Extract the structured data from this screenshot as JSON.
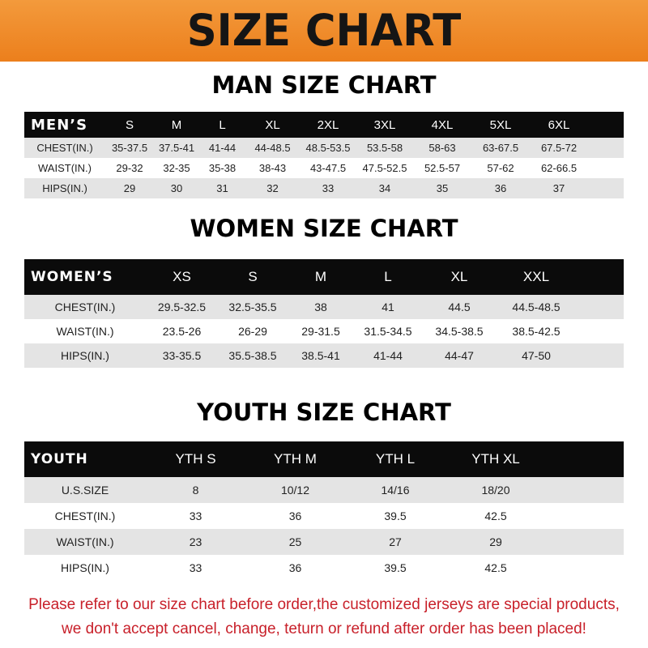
{
  "banner": "SIZE CHART",
  "men": {
    "title": "MAN SIZE CHART",
    "header": "MEN’S",
    "sizes": [
      "S",
      "M",
      "L",
      "XL",
      "2XL",
      "3XL",
      "4XL",
      "5XL",
      "6XL"
    ],
    "rows": [
      {
        "label": "CHEST(IN.)",
        "values": [
          "35-37.5",
          "37.5-41",
          "41-44",
          "44-48.5",
          "48.5-53.5",
          "53.5-58",
          "58-63",
          "63-67.5",
          "67.5-72"
        ]
      },
      {
        "label": "WAIST(IN.)",
        "values": [
          "29-32",
          "32-35",
          "35-38",
          "38-43",
          "43-47.5",
          "47.5-52.5",
          "52.5-57",
          "57-62",
          "62-66.5"
        ]
      },
      {
        "label": "HIPS(IN.)",
        "values": [
          "29",
          "30",
          "31",
          "32",
          "33",
          "34",
          "35",
          "36",
          "37"
        ]
      }
    ]
  },
  "women": {
    "title": "WOMEN SIZE CHART",
    "header": "WOMEN’S",
    "sizes": [
      "XS",
      "S",
      "M",
      "L",
      "XL",
      "XXL"
    ],
    "rows": [
      {
        "label": "CHEST(IN.)",
        "values": [
          "29.5-32.5",
          "32.5-35.5",
          "38",
          "41",
          "44.5",
          "44.5-48.5"
        ]
      },
      {
        "label": "WAIST(IN.)",
        "values": [
          "23.5-26",
          "26-29",
          "29-31.5",
          "31.5-34.5",
          "34.5-38.5",
          "38.5-42.5"
        ]
      },
      {
        "label": "HIPS(IN.)",
        "values": [
          "33-35.5",
          "35.5-38.5",
          "38.5-41",
          "41-44",
          "44-47",
          "47-50"
        ]
      }
    ]
  },
  "youth": {
    "title": "YOUTH SIZE CHART",
    "header": "YOUTH",
    "sizes": [
      "YTH S",
      "YTH M",
      "YTH L",
      "YTH XL"
    ],
    "rows": [
      {
        "label": "U.S.SIZE",
        "values": [
          "8",
          "10/12",
          "14/16",
          "18/20"
        ]
      },
      {
        "label": "CHEST(IN.)",
        "values": [
          "33",
          "36",
          "39.5",
          "42.5"
        ]
      },
      {
        "label": "WAIST(IN.)",
        "values": [
          "23",
          "25",
          "27",
          "29"
        ]
      },
      {
        "label": "HIPS(IN.)",
        "values": [
          "33",
          "36",
          "39.5",
          "42.5"
        ]
      }
    ]
  },
  "note": [
    "Please refer to our size chart before order,the customized jerseys are special products,",
    "we don't accept cancel, change, teturn or refund after order has been placed!"
  ]
}
